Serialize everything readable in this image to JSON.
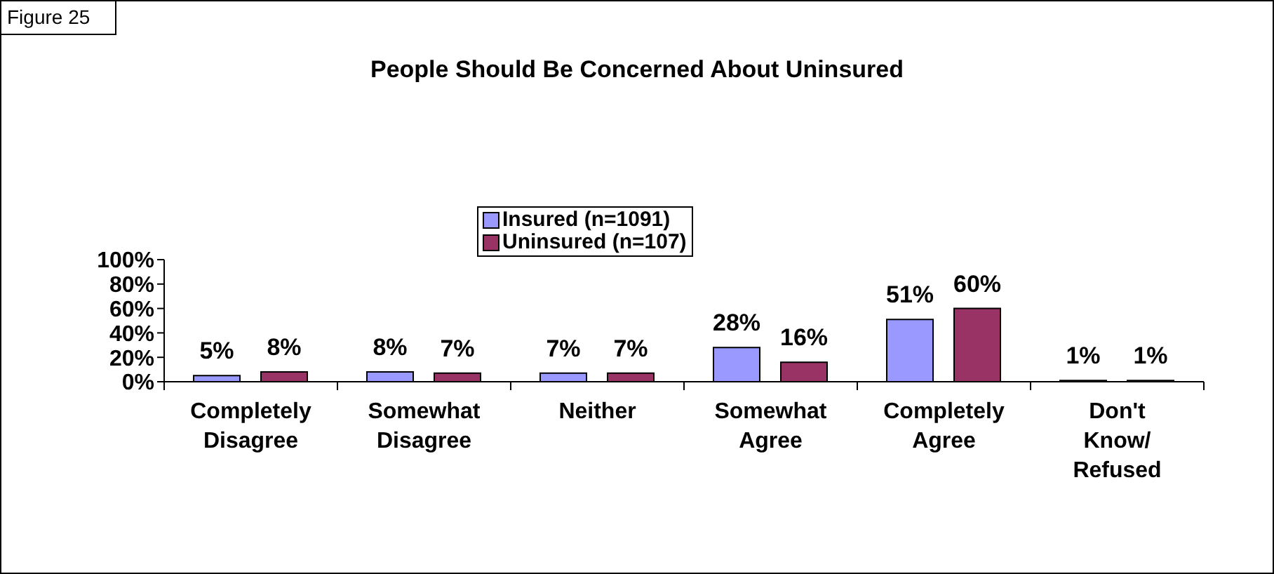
{
  "chart_data": {
    "type": "bar",
    "title": "People Should Be Concerned About Uninsured",
    "annotations": [
      "Figure 25"
    ],
    "categories": [
      "Completely Disagree",
      "Somewhat Disagree",
      "Neither",
      "Somewhat Agree",
      "Completely Agree",
      "Don't Know/ Refused"
    ],
    "series": [
      {
        "name": "Insured (n=1091)",
        "color": "#9999ff",
        "values": [
          5,
          8,
          7,
          28,
          51,
          1
        ],
        "value_labels": [
          "5%",
          "8%",
          "7%",
          "28%",
          "51%",
          "1%"
        ]
      },
      {
        "name": "Uninsured (n=107)",
        "color": "#993366",
        "values": [
          8,
          7,
          7,
          16,
          60,
          1
        ],
        "value_labels": [
          "8%",
          "7%",
          "7%",
          "16%",
          "60%",
          "1%"
        ]
      }
    ],
    "ylim": [
      0,
      100
    ],
    "yticks": [
      {
        "value": 0,
        "label": "0%"
      },
      {
        "value": 20,
        "label": "20%"
      },
      {
        "value": 40,
        "label": "40%"
      },
      {
        "value": 60,
        "label": "60%"
      },
      {
        "value": 80,
        "label": "80%"
      },
      {
        "value": 100,
        "label": "100%"
      }
    ],
    "grid": false,
    "legend": "top"
  }
}
